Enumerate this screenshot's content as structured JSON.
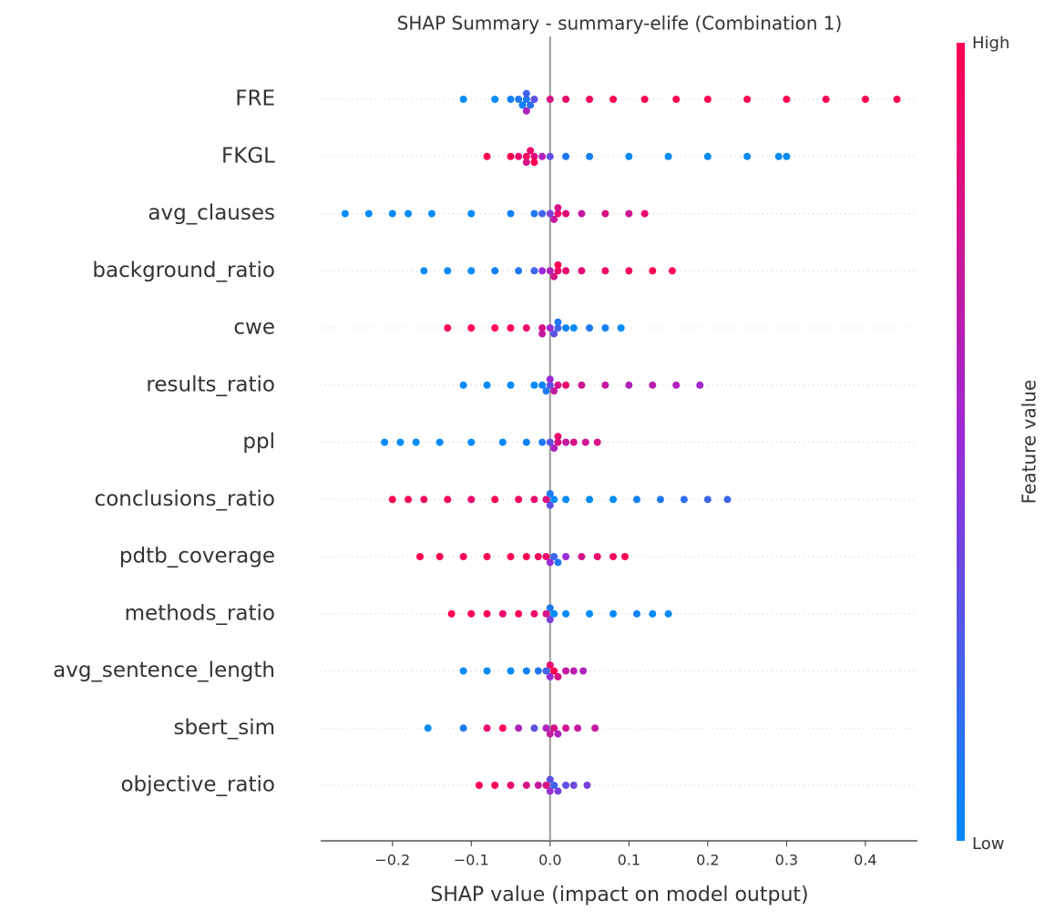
{
  "chart_data": {
    "type": "beeswarm",
    "title": "SHAP Summary - summary-elife (Combination 1)",
    "xlabel": "SHAP value (impact on model output)",
    "xlim": [
      -0.291,
      0.466
    ],
    "xticks": [
      {
        "value": -0.2,
        "label": "−0.2"
      },
      {
        "value": -0.1,
        "label": "−0.1"
      },
      {
        "value": 0,
        "label": "0.0"
      },
      0.1,
      0.2,
      0.3,
      0.4
    ],
    "colormap": [
      "#008bfb",
      "#9b2bd6",
      "#ff0051"
    ],
    "colorbar_label": "Feature value",
    "colorbar_high": "High",
    "colorbar_low": "Low",
    "series": [
      {
        "name": "FRE",
        "values": [
          -0.11,
          -0.07,
          -0.05,
          -0.04,
          -0.035,
          -0.03,
          -0.03,
          -0.025,
          -0.02,
          -0.03,
          0.0,
          0.02,
          0.05,
          0.08,
          0.12,
          0.16,
          0.2,
          0.25,
          0.3,
          0.35,
          0.4,
          0.44
        ],
        "feature_values": [
          0,
          0,
          0.05,
          0.1,
          0.05,
          0.1,
          0.2,
          0.15,
          0.3,
          0.6,
          0.8,
          0.9,
          0.95,
          1,
          1,
          1,
          1,
          1,
          1,
          1,
          1,
          1
        ]
      },
      {
        "name": "FKGL",
        "values": [
          -0.08,
          -0.05,
          -0.04,
          -0.03,
          -0.03,
          -0.025,
          -0.02,
          -0.02,
          -0.01,
          0.0,
          0.02,
          0.05,
          0.1,
          0.15,
          0.2,
          0.25,
          0.29,
          0.3
        ],
        "feature_values": [
          1,
          1,
          0.9,
          0.95,
          0.8,
          0.9,
          0.85,
          1,
          0.6,
          0.3,
          0.1,
          0.05,
          0,
          0,
          0,
          0,
          0,
          0
        ]
      },
      {
        "name": "avg_clauses",
        "values": [
          -0.26,
          -0.23,
          -0.2,
          -0.18,
          -0.15,
          -0.1,
          -0.05,
          -0.02,
          -0.01,
          0,
          0.005,
          0.01,
          0.01,
          0.02,
          0.04,
          0.07,
          0.1,
          0.12
        ],
        "feature_values": [
          0,
          0,
          0,
          0,
          0,
          0,
          0.05,
          0.1,
          0.2,
          0.4,
          0.7,
          0.9,
          0.8,
          0.85,
          0.7,
          0.8,
          0.75,
          0.9
        ]
      },
      {
        "name": "background_ratio",
        "values": [
          -0.16,
          -0.13,
          -0.1,
          -0.07,
          -0.04,
          -0.02,
          -0.01,
          0,
          0.005,
          0.01,
          0.01,
          0.02,
          0.04,
          0.07,
          0.1,
          0.13,
          0.155
        ],
        "feature_values": [
          0,
          0,
          0,
          0.05,
          0.1,
          0.2,
          0.5,
          0.6,
          0.8,
          0.9,
          1,
          0.9,
          0.85,
          0.9,
          0.95,
          1,
          1
        ]
      },
      {
        "name": "cwe",
        "values": [
          -0.13,
          -0.1,
          -0.07,
          -0.05,
          -0.03,
          -0.01,
          -0.01,
          0,
          0.005,
          0.01,
          0.01,
          0.02,
          0.03,
          0.05,
          0.07,
          0.09
        ],
        "feature_values": [
          1,
          1,
          1,
          0.95,
          0.9,
          0.8,
          0.7,
          0.5,
          0.3,
          0.2,
          0.1,
          0.05,
          0,
          0.1,
          0.05,
          0
        ]
      },
      {
        "name": "results_ratio",
        "values": [
          -0.11,
          -0.08,
          -0.05,
          -0.02,
          -0.01,
          -0.005,
          0,
          0,
          0.005,
          0.01,
          0.02,
          0.04,
          0.07,
          0.1,
          0.13,
          0.16,
          0.19
        ],
        "feature_values": [
          0,
          0,
          0,
          0,
          0.05,
          0.1,
          0.3,
          0.5,
          0.7,
          0.8,
          0.9,
          0.75,
          0.7,
          0.6,
          0.65,
          0.6,
          0.55
        ]
      },
      {
        "name": "ppl",
        "values": [
          -0.21,
          -0.19,
          -0.17,
          -0.14,
          -0.1,
          -0.06,
          -0.03,
          -0.01,
          0,
          0.005,
          0.01,
          0.01,
          0.02,
          0.03,
          0.045,
          0.06
        ],
        "feature_values": [
          0,
          0,
          0,
          0,
          0,
          0,
          0.05,
          0.1,
          0.3,
          0.6,
          0.8,
          0.9,
          0.7,
          0.8,
          0.75,
          0.8
        ]
      },
      {
        "name": "conclusions_ratio",
        "values": [
          -0.2,
          -0.18,
          -0.16,
          -0.13,
          -0.1,
          -0.07,
          -0.04,
          -0.02,
          -0.005,
          0,
          0,
          0.005,
          0.02,
          0.05,
          0.08,
          0.11,
          0.14,
          0.17,
          0.2,
          0.225
        ],
        "feature_values": [
          1,
          1,
          0.95,
          1,
          0.9,
          1,
          0.95,
          0.9,
          0.8,
          0.3,
          0.1,
          0,
          0,
          0,
          0,
          0.05,
          0.1,
          0.15,
          0.2,
          0.2
        ]
      },
      {
        "name": "pdtb_coverage",
        "values": [
          -0.165,
          -0.14,
          -0.11,
          -0.08,
          -0.05,
          -0.03,
          -0.015,
          -0.005,
          0,
          0.005,
          0.01,
          0.02,
          0.04,
          0.06,
          0.08,
          0.095
        ],
        "feature_values": [
          1,
          1,
          1,
          1,
          1,
          1,
          0.95,
          0.9,
          0.5,
          0.2,
          0.1,
          0.5,
          0.8,
          0.9,
          0.95,
          1
        ]
      },
      {
        "name": "methods_ratio",
        "values": [
          -0.125,
          -0.1,
          -0.08,
          -0.06,
          -0.04,
          -0.02,
          -0.005,
          0,
          0,
          0.005,
          0.02,
          0.05,
          0.08,
          0.11,
          0.13,
          0.15
        ],
        "feature_values": [
          1,
          1,
          1,
          0.9,
          1,
          0.9,
          0.8,
          0.4,
          0.1,
          0,
          0,
          0,
          0,
          0.05,
          0,
          0
        ]
      },
      {
        "name": "avg_sentence_length",
        "values": [
          -0.11,
          -0.08,
          -0.05,
          -0.03,
          -0.015,
          -0.005,
          0,
          0,
          0.005,
          0.01,
          0.02,
          0.03,
          0.042
        ],
        "feature_values": [
          0,
          0,
          0,
          0.05,
          0.1,
          0.2,
          0.5,
          0.9,
          1,
          0.8,
          0.7,
          0.65,
          0.6
        ]
      },
      {
        "name": "sbert_sim",
        "values": [
          -0.155,
          -0.11,
          -0.08,
          -0.06,
          -0.04,
          -0.02,
          -0.005,
          0,
          0.005,
          0.01,
          0.02,
          0.035,
          0.057
        ],
        "feature_values": [
          0,
          0.1,
          0.9,
          1,
          0.6,
          0.3,
          0.6,
          0.7,
          0.8,
          0.6,
          0.75,
          0.7,
          0.7
        ]
      },
      {
        "name": "objective_ratio",
        "values": [
          -0.09,
          -0.07,
          -0.05,
          -0.03,
          -0.015,
          -0.005,
          0,
          0,
          0.005,
          0.01,
          0.02,
          0.03,
          0.047
        ],
        "feature_values": [
          1,
          1,
          0.9,
          0.8,
          0.7,
          0.8,
          0.5,
          0.3,
          0.2,
          0.4,
          0.3,
          0.35,
          0.4
        ]
      }
    ]
  }
}
